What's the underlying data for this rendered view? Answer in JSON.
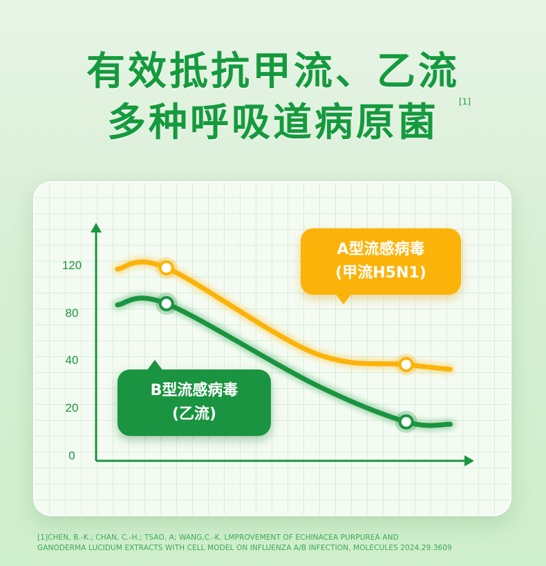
{
  "header": {
    "title_line1": "有效抵抗甲流、乙流",
    "title_line2": "多种呼吸道病原菌",
    "ref_mark": "[1]"
  },
  "chart_data": {
    "type": "line",
    "title": "",
    "xlabel": "",
    "ylabel": "",
    "y_ticks": [
      "0",
      "20",
      "40",
      "80",
      "120"
    ],
    "series": [
      {
        "name": "A型流感病毒 (甲流H5N1)",
        "color": "#fbb30a",
        "points": [
          [
            0,
            116
          ],
          [
            1,
            117
          ],
          [
            4,
            46
          ],
          [
            5.9,
            38
          ],
          [
            6.8,
            36
          ]
        ]
      },
      {
        "name": "B型流感病毒 (乙流)",
        "color": "#1a9440",
        "points": [
          [
            0,
            86
          ],
          [
            1,
            87
          ],
          [
            4,
            30
          ],
          [
            5.9,
            14
          ],
          [
            6.8,
            13
          ]
        ]
      }
    ],
    "markers": [
      {
        "series": 0,
        "x": 1,
        "y": 117
      },
      {
        "series": 0,
        "x": 5.9,
        "y": 38
      },
      {
        "series": 1,
        "x": 1,
        "y": 87
      },
      {
        "series": 1,
        "x": 5.9,
        "y": 14
      }
    ],
    "grid": true
  },
  "labels": {
    "a_line1": "A型流感病毒",
    "a_line2": "(甲流H5N1)",
    "b_line1": "B型流感病毒",
    "b_line2": "(乙流)"
  },
  "footnote": {
    "line1": "[1]CHEN, B.-K.; CHAN, C.-H.; TSAO, A; WANG,C.-K. LMPROVEMENT OF ECHINACEA PURPUREA AND",
    "line2": "GANODERMA LUCIDUM EXTRACTS WITH CELL MODEL ON INFLUENZA A/B INFECTION, MOLECULES 2024.29.3609"
  },
  "colors": {
    "title": "#159a3e",
    "accent_orange": "#fbb30a",
    "accent_green": "#1a9440"
  }
}
